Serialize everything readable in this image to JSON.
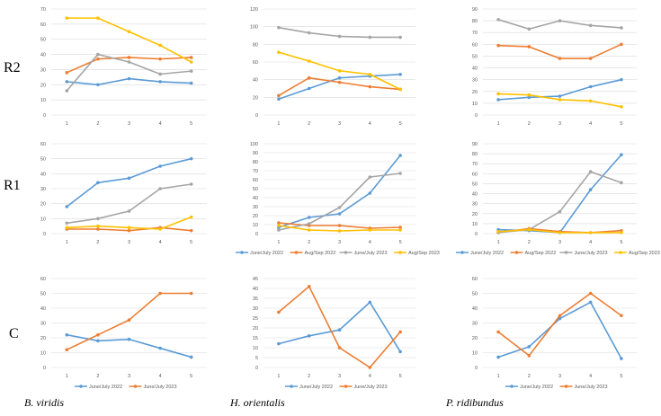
{
  "colors": {
    "June/July 2022": "#5b9bd5",
    "Aug/Sep 2022": "#ed7d31",
    "June/July 2023": "#a5a5a5",
    "Aug/Sep 2023": "#ffc000",
    "June/July 2023 (C)": "#ed7d31"
  },
  "row_labels": [
    "R2",
    "R1",
    "C"
  ],
  "species": [
    "B. viridis",
    "H. orientalis",
    "P. ridibundus"
  ],
  "chart_data": [
    {
      "type": "line",
      "row": "R2",
      "col": "B. viridis",
      "categories": [
        "1",
        "2",
        "3",
        "4",
        "5"
      ],
      "ylim": [
        0,
        70
      ],
      "yticks": [
        "0",
        "10",
        "20",
        "30",
        "40",
        "50",
        "60",
        "70"
      ],
      "show_legend": false,
      "series": [
        {
          "name": "June/July 2022",
          "values": [
            22,
            20,
            24,
            22,
            21
          ]
        },
        {
          "name": "Aug/Sep 2022",
          "values": [
            28,
            37,
            38,
            37,
            38
          ]
        },
        {
          "name": "June/July 2023",
          "values": [
            16,
            40,
            35,
            27,
            29
          ]
        },
        {
          "name": "Aug/Sep 2023",
          "values": [
            64,
            64,
            55,
            46,
            35
          ]
        }
      ]
    },
    {
      "type": "line",
      "row": "R2",
      "col": "H. orientalis",
      "categories": [
        "1",
        "2",
        "3",
        "4",
        "5"
      ],
      "ylim": [
        0,
        120
      ],
      "yticks": [
        "0",
        "20",
        "40",
        "60",
        "80",
        "100",
        "120"
      ],
      "show_legend": false,
      "series": [
        {
          "name": "June/July 2022",
          "values": [
            18,
            30,
            42,
            44,
            46
          ]
        },
        {
          "name": "Aug/Sep 2022",
          "values": [
            22,
            42,
            37,
            32,
            29
          ]
        },
        {
          "name": "June/July 2023",
          "values": [
            99,
            93,
            89,
            88,
            88
          ]
        },
        {
          "name": "Aug/Sep 2023",
          "values": [
            71,
            61,
            50,
            46,
            29
          ]
        }
      ]
    },
    {
      "type": "line",
      "row": "R2",
      "col": "P. ridibundus",
      "categories": [
        "1",
        "2",
        "3",
        "4",
        "5"
      ],
      "ylim": [
        0,
        90
      ],
      "yticks": [
        "0",
        "10",
        "20",
        "30",
        "40",
        "50",
        "60",
        "70",
        "80",
        "90"
      ],
      "show_legend": false,
      "series": [
        {
          "name": "June/July 2022",
          "values": [
            13,
            15,
            16,
            24,
            30
          ]
        },
        {
          "name": "Aug/Sep 2022",
          "values": [
            59,
            58,
            48,
            48,
            60
          ]
        },
        {
          "name": "June/July 2023",
          "values": [
            81,
            73,
            80,
            76,
            74
          ]
        },
        {
          "name": "Aug/Sep 2023",
          "values": [
            18,
            17,
            13,
            12,
            7
          ]
        }
      ]
    },
    {
      "type": "line",
      "row": "R1",
      "col": "B. viridis",
      "categories": [
        "1",
        "2",
        "3",
        "4",
        "5"
      ],
      "ylim": [
        0,
        60
      ],
      "yticks": [
        "0",
        "10",
        "20",
        "30",
        "40",
        "50",
        "60"
      ],
      "show_legend": false,
      "series": [
        {
          "name": "June/July 2022",
          "values": [
            18,
            34,
            37,
            45,
            50
          ]
        },
        {
          "name": "Aug/Sep 2022",
          "values": [
            3,
            3,
            2,
            4,
            2
          ]
        },
        {
          "name": "June/July 2023",
          "values": [
            7,
            10,
            15,
            30,
            33
          ]
        },
        {
          "name": "Aug/Sep 2023",
          "values": [
            4,
            5,
            4,
            3,
            11
          ]
        }
      ]
    },
    {
      "type": "line",
      "row": "R1",
      "col": "H. orientalis",
      "categories": [
        "1",
        "2",
        "3",
        "4",
        "5"
      ],
      "ylim": [
        0,
        100
      ],
      "yticks": [
        "0",
        "10",
        "20",
        "30",
        "40",
        "50",
        "60",
        "70",
        "80",
        "90",
        "100"
      ],
      "show_legend": true,
      "series": [
        {
          "name": "June/July 2022",
          "values": [
            7,
            18,
            22,
            45,
            87
          ]
        },
        {
          "name": "Aug/Sep 2022",
          "values": [
            12,
            9,
            9,
            6,
            7
          ]
        },
        {
          "name": "June/July 2023",
          "values": [
            4,
            11,
            29,
            63,
            67
          ]
        },
        {
          "name": "Aug/Sep 2023",
          "values": [
            9,
            4,
            3,
            4,
            4
          ]
        }
      ]
    },
    {
      "type": "line",
      "row": "R1",
      "col": "P. ridibundus",
      "categories": [
        "1",
        "2",
        "3",
        "4",
        "5"
      ],
      "ylim": [
        0,
        90
      ],
      "yticks": [
        "0",
        "10",
        "20",
        "30",
        "40",
        "50",
        "60",
        "70",
        "80",
        "90"
      ],
      "show_legend": true,
      "series": [
        {
          "name": "June/July 2022",
          "values": [
            4,
            3,
            1,
            44,
            79
          ]
        },
        {
          "name": "Aug/Sep 2022",
          "values": [
            1,
            5,
            2,
            1,
            3
          ]
        },
        {
          "name": "June/July 2023",
          "values": [
            1,
            4,
            22,
            62,
            51
          ]
        },
        {
          "name": "Aug/Sep 2023",
          "values": [
            2,
            4,
            1,
            1,
            1
          ]
        }
      ]
    },
    {
      "type": "line",
      "row": "C",
      "col": "B. viridis",
      "categories": [
        "1",
        "2",
        "3",
        "4",
        "5"
      ],
      "ylim": [
        0,
        60
      ],
      "yticks": [
        "0",
        "10",
        "20",
        "30",
        "40",
        "50",
        "60"
      ],
      "show_legend": true,
      "series": [
        {
          "name": "June/July 2022",
          "values": [
            22,
            18,
            19,
            13,
            7
          ]
        },
        {
          "name": "June/July 2023",
          "values": [
            12,
            22,
            32,
            50,
            50
          ]
        }
      ]
    },
    {
      "type": "line",
      "row": "C",
      "col": "H. orientalis",
      "categories": [
        "1",
        "2",
        "3",
        "4",
        "5"
      ],
      "ylim": [
        0,
        45
      ],
      "yticks": [
        "0",
        "5",
        "10",
        "15",
        "20",
        "25",
        "30",
        "35",
        "40",
        "45"
      ],
      "show_legend": true,
      "series": [
        {
          "name": "June/July 2022",
          "values": [
            12,
            16,
            19,
            33,
            8
          ]
        },
        {
          "name": "June/July 2023",
          "values": [
            28,
            41,
            10,
            0,
            18
          ]
        }
      ]
    },
    {
      "type": "line",
      "row": "C",
      "col": "P. ridibundus",
      "categories": [
        "1",
        "2",
        "3",
        "4",
        "5"
      ],
      "ylim": [
        0,
        60
      ],
      "yticks": [
        "0",
        "10",
        "20",
        "30",
        "40",
        "50",
        "60"
      ],
      "show_legend": true,
      "series": [
        {
          "name": "June/July 2022",
          "values": [
            7,
            14,
            33,
            44,
            6
          ]
        },
        {
          "name": "June/July 2023",
          "values": [
            24,
            8,
            35,
            50,
            35
          ]
        }
      ]
    }
  ]
}
